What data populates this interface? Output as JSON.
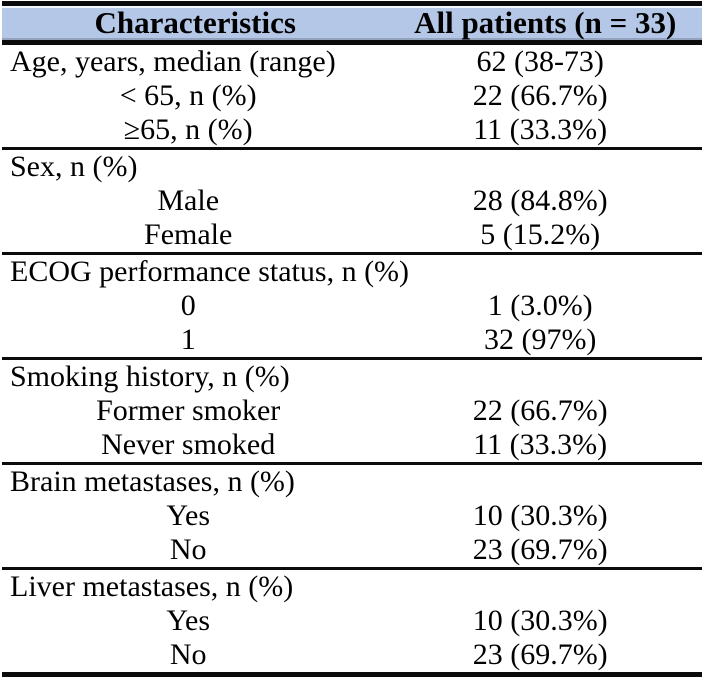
{
  "table": {
    "title": "Patient baseline characteristics table",
    "colors": {
      "header_fill": "#b4c7e7",
      "rule": "#0b0b0b",
      "text": "#000000",
      "background": "#ffffff"
    },
    "header": {
      "col1": "Characteristics",
      "col2": "All patients (n = 33)"
    },
    "sections": [
      {
        "rows": [
          {
            "label": "Age, years, median (range)",
            "value": "62 (38-73)",
            "align": "left"
          },
          {
            "label": "< 65, n (%)",
            "value": "22 (66.7%)",
            "align": "center"
          },
          {
            "label": "≥65, n (%)",
            "value": "11 (33.3%)",
            "align": "center"
          }
        ]
      },
      {
        "rows": [
          {
            "label": "Sex, n (%)",
            "value": "",
            "align": "left"
          },
          {
            "label": "Male",
            "value": "28 (84.8%)",
            "align": "center"
          },
          {
            "label": "Female",
            "value": "5 (15.2%)",
            "align": "center"
          }
        ]
      },
      {
        "rows": [
          {
            "label": "ECOG performance status, n (%)",
            "value": "",
            "align": "left"
          },
          {
            "label": "0",
            "value": "1 (3.0%)",
            "align": "center"
          },
          {
            "label": "1",
            "value": "32 (97%)",
            "align": "center"
          }
        ]
      },
      {
        "rows": [
          {
            "label": "Smoking history, n (%)",
            "value": "",
            "align": "left"
          },
          {
            "label": "Former smoker",
            "value": "22 (66.7%)",
            "align": "center"
          },
          {
            "label": "Never smoked",
            "value": "11 (33.3%)",
            "align": "center"
          }
        ]
      },
      {
        "rows": [
          {
            "label": "Brain metastases, n (%)",
            "value": "",
            "align": "left"
          },
          {
            "label": "Yes",
            "value": "10 (30.3%)",
            "align": "center"
          },
          {
            "label": "No",
            "value": "23 (69.7%)",
            "align": "center"
          }
        ]
      },
      {
        "rows": [
          {
            "label": "Liver metastases, n (%)",
            "value": "",
            "align": "left"
          },
          {
            "label": "Yes",
            "value": "10 (30.3%)",
            "align": "center"
          },
          {
            "label": "No",
            "value": "23 (69.7%)",
            "align": "center"
          }
        ]
      }
    ]
  },
  "chart_data": {
    "type": "table",
    "columns": [
      "Characteristics",
      "All patients (n = 33)"
    ],
    "rows": [
      [
        "Age, years, median (range)",
        "62 (38-73)"
      ],
      [
        "< 65, n (%)",
        "22 (66.7%)"
      ],
      [
        "≥65, n (%)",
        "11 (33.3%)"
      ],
      [
        "Sex, n (%)",
        ""
      ],
      [
        "Male",
        "28 (84.8%)"
      ],
      [
        "Female",
        "5 (15.2%)"
      ],
      [
        "ECOG performance status, n (%)",
        ""
      ],
      [
        "0",
        "1 (3.0%)"
      ],
      [
        "1",
        "32 (97%)"
      ],
      [
        "Smoking history, n (%)",
        ""
      ],
      [
        "Former smoker",
        "22 (66.7%)"
      ],
      [
        "Never smoked",
        "11 (33.3%)"
      ],
      [
        "Brain metastases, n (%)",
        ""
      ],
      [
        "Yes",
        "10 (30.3%)"
      ],
      [
        "No",
        "23 (69.7%)"
      ],
      [
        "Liver metastases, n (%)",
        ""
      ],
      [
        "Yes",
        "10 (30.3%)"
      ],
      [
        "No",
        "23 (69.7%)"
      ]
    ]
  }
}
